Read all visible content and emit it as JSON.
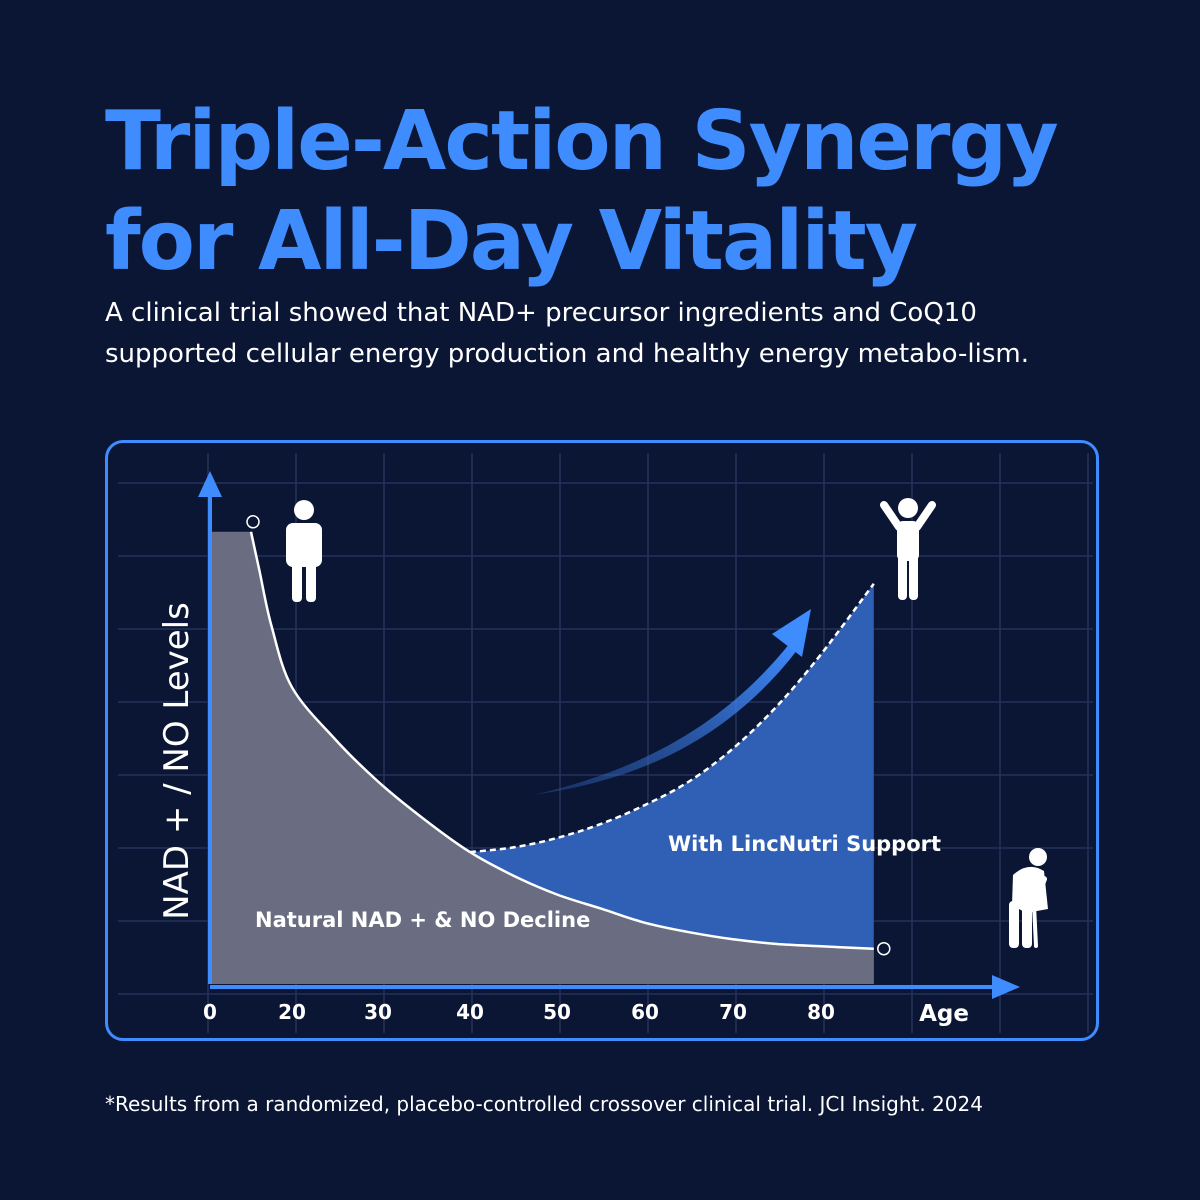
{
  "header": {
    "title": "Triple-Action Synergy for All-Day Vitality",
    "subtitle": "A clinical trial showed that NAD+ precursor ingredients and CoQ10 supported cellular energy production and healthy energy metabo-lism."
  },
  "chart_data": {
    "type": "area",
    "ylabel": "NAD + / NO Levels",
    "xlabel": "Age",
    "x_ticks": [
      "0",
      "20",
      "30",
      "40",
      "50",
      "60",
      "70",
      "80"
    ],
    "series": [
      {
        "name": "Natural NAD + & NO Decline",
        "color": "#6a6d82",
        "points": [
          [
            10,
            96
          ],
          [
            12,
            88
          ],
          [
            15,
            76
          ],
          [
            20,
            63
          ],
          [
            25,
            52
          ],
          [
            30,
            43
          ],
          [
            35,
            35
          ],
          [
            40,
            28
          ],
          [
            45,
            23
          ],
          [
            50,
            19
          ],
          [
            55,
            16
          ],
          [
            60,
            13
          ],
          [
            65,
            11
          ],
          [
            70,
            9.5
          ],
          [
            75,
            8.5
          ],
          [
            80,
            8
          ],
          [
            86,
            7.5
          ]
        ]
      },
      {
        "name": "With LincNutri Support",
        "color": "#2f60b5",
        "points": [
          [
            40,
            28
          ],
          [
            45,
            29
          ],
          [
            50,
            31
          ],
          [
            55,
            34
          ],
          [
            60,
            38
          ],
          [
            65,
            43
          ],
          [
            70,
            50
          ],
          [
            75,
            59
          ],
          [
            80,
            70
          ],
          [
            86,
            85
          ]
        ]
      }
    ],
    "grid": true
  },
  "footer": {
    "note": "*Results from a randomized, placebo-controlled crossover clinical trial. JCI Insight. 2024"
  },
  "colors": {
    "background": "#0b1534",
    "accent": "#3f8cff",
    "decline_fill": "#6a6d82",
    "support_fill": "#2f60b5"
  },
  "icons": [
    "standing-person-icon",
    "cheering-person-icon",
    "elderly-person-cane-icon",
    "trend-up-arrow-icon"
  ]
}
